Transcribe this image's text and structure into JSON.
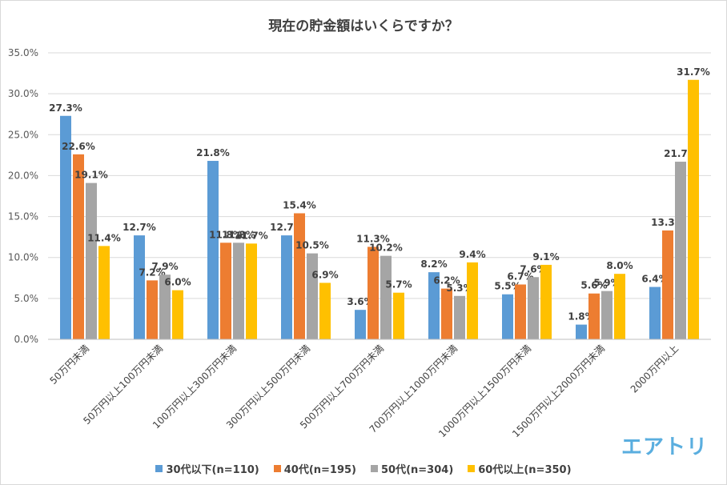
{
  "chart_data": {
    "type": "bar",
    "title": "現在の貯金額はいくらですか？",
    "categories": [
      "50万円未満",
      "50万円以上100万円未満",
      "100万円以上300万円未満",
      "300万円以上500万円未満",
      "500万円以上700万円未満",
      "700万円以上1000万円未満",
      "1000万円以上1500万円未満",
      "1500万円以上2000万円未満",
      "2000万円以上"
    ],
    "series": [
      {
        "name": "30代以下(n=110)",
        "color": "#5b9bd5",
        "values": [
          27.3,
          12.7,
          21.8,
          12.7,
          3.6,
          8.2,
          5.5,
          1.8,
          6.4
        ]
      },
      {
        "name": "40代(n=195)",
        "color": "#ed7d31",
        "values": [
          22.6,
          7.2,
          11.8,
          15.4,
          11.3,
          6.2,
          6.7,
          5.6,
          13.3
        ]
      },
      {
        "name": "50代(n=304)",
        "color": "#a5a5a5",
        "values": [
          19.1,
          7.9,
          11.8,
          10.5,
          10.2,
          5.3,
          7.6,
          5.9,
          21.7
        ]
      },
      {
        "name": "60代以上(n=350)",
        "color": "#ffc000",
        "values": [
          11.4,
          6.0,
          11.7,
          6.9,
          5.7,
          9.4,
          9.1,
          8.0,
          31.7
        ]
      }
    ],
    "yticks": [
      "0.0%",
      "5.0%",
      "10.0%",
      "15.0%",
      "20.0%",
      "25.0%",
      "30.0%",
      "35.0%"
    ],
    "ylim": [
      0,
      35
    ],
    "xlabel": "",
    "ylabel": "",
    "grid": true,
    "legend_position": "bottom"
  },
  "brand": {
    "logo_text": "エアトリ"
  }
}
